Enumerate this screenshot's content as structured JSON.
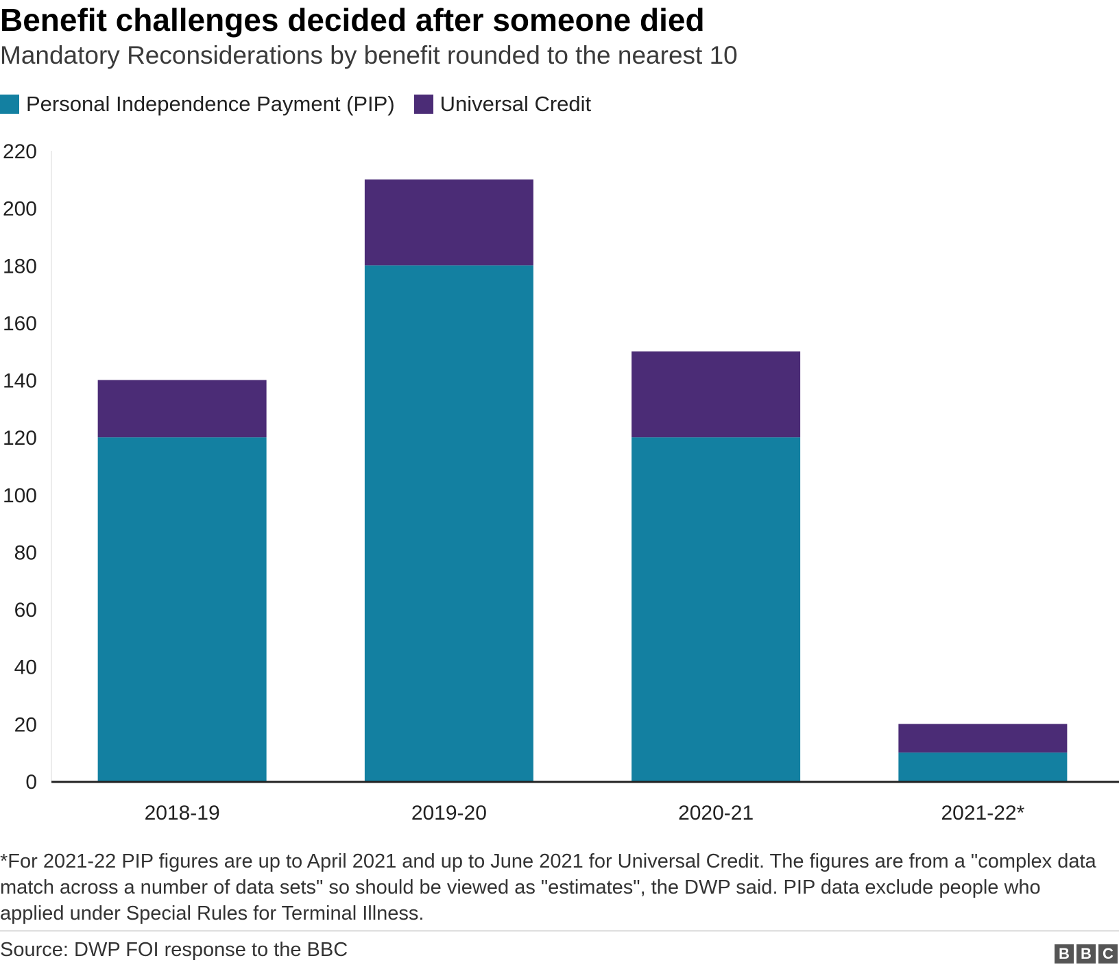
{
  "title": "Benefit challenges decided after someone died",
  "subtitle": "Mandatory Reconsiderations by benefit rounded to the nearest 10",
  "legend": [
    {
      "label": "Personal Independence Payment (PIP)",
      "color": "#1380a1"
    },
    {
      "label": "Universal Credit",
      "color": "#4b2c76"
    }
  ],
  "footnote": "*For 2021-22 PIP figures are up to April 2021 and up to June 2021 for Universal Credit. The figures are from a \"complex data match across a number of data sets\" so should be viewed as \"estimates\", the DWP said. PIP data exclude people who applied under Special Rules for Terminal Illness.",
  "source": "Source: DWP FOI response to the BBC",
  "logo": [
    "B",
    "B",
    "C"
  ],
  "chart_data": {
    "type": "bar",
    "stacked": true,
    "categories": [
      "2018-19",
      "2019-20",
      "2020-21",
      "2021-22*"
    ],
    "series": [
      {
        "name": "Personal Independence Payment (PIP)",
        "values": [
          120,
          180,
          120,
          10
        ],
        "color": "#1380a1"
      },
      {
        "name": "Universal Credit",
        "values": [
          20,
          30,
          30,
          10
        ],
        "color": "#4b2c76"
      }
    ],
    "yticks": [
      0,
      20,
      40,
      60,
      80,
      100,
      120,
      140,
      160,
      180,
      200,
      220
    ],
    "ylim": [
      0,
      220
    ],
    "grid": false,
    "legend_position": "top-left"
  }
}
